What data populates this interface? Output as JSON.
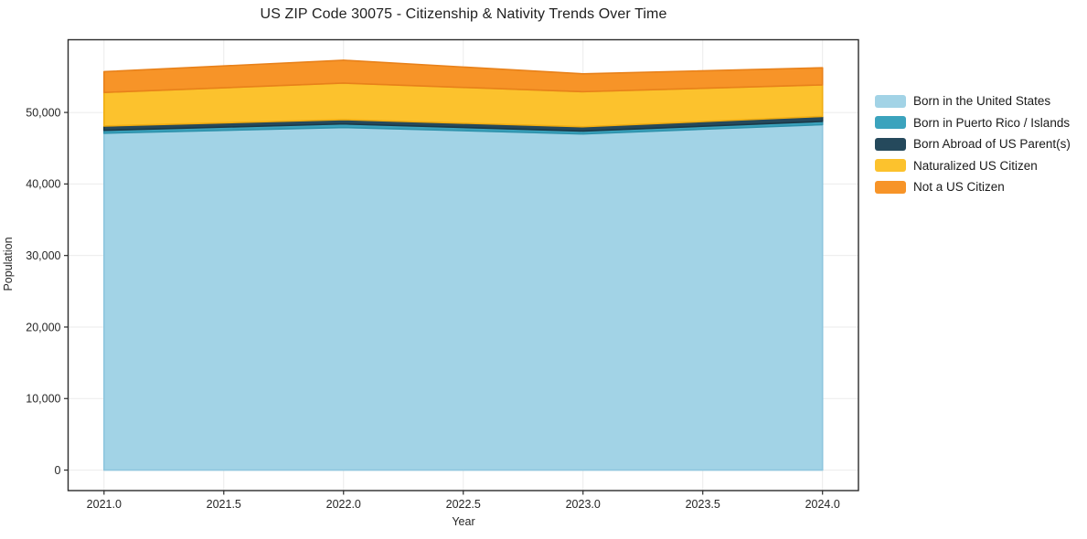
{
  "chart_data": {
    "type": "area",
    "stacked": true,
    "title": "US ZIP Code 30075 - Citizenship & Nativity Trends Over Time",
    "xlabel": "Year",
    "ylabel": "Population",
    "x": [
      2021,
      2022,
      2023,
      2024
    ],
    "series": [
      {
        "name": "Born in the United States",
        "color": "#a2d3e6",
        "edge": "#8ec6de",
        "values": [
          47100,
          47900,
          47000,
          48300
        ]
      },
      {
        "name": "Born in Puerto Rico / Islands",
        "color": "#3ba3bd",
        "edge": "#2e92ac",
        "values": [
          400,
          500,
          400,
          450
        ]
      },
      {
        "name": "Born Abroad of US Parent(s)",
        "color": "#25495c",
        "edge": "#1b3947",
        "values": [
          600,
          600,
          600,
          700
        ]
      },
      {
        "name": "Naturalized US Citizen",
        "color": "#fcc22d",
        "edge": "#f0ad12",
        "values": [
          4700,
          5100,
          4900,
          4400
        ]
      },
      {
        "name": "Not a US Citizen",
        "color": "#f79428",
        "edge": "#e8811a",
        "values": [
          2900,
          3200,
          2500,
          2400
        ]
      }
    ],
    "stack_totals": [
      55700,
      57300,
      55400,
      56250
    ],
    "xlim": [
      2020.85,
      2024.15
    ],
    "ylim": [
      -2865,
      60165
    ],
    "x_ticks": [
      {
        "v": 2021.0,
        "label": "2021.0"
      },
      {
        "v": 2021.5,
        "label": "2021.5"
      },
      {
        "v": 2022.0,
        "label": "2022.0"
      },
      {
        "v": 2022.5,
        "label": "2022.5"
      },
      {
        "v": 2023.0,
        "label": "2023.0"
      },
      {
        "v": 2023.5,
        "label": "2023.5"
      },
      {
        "v": 2024.0,
        "label": "2024.0"
      }
    ],
    "y_ticks": [
      {
        "v": 0,
        "label": "0"
      },
      {
        "v": 10000,
        "label": "10,000"
      },
      {
        "v": 20000,
        "label": "20,000"
      },
      {
        "v": 30000,
        "label": "30,000"
      },
      {
        "v": 40000,
        "label": "40,000"
      },
      {
        "v": 50000,
        "label": "50,000"
      }
    ],
    "grid": true,
    "legend_position": "right-outside"
  }
}
